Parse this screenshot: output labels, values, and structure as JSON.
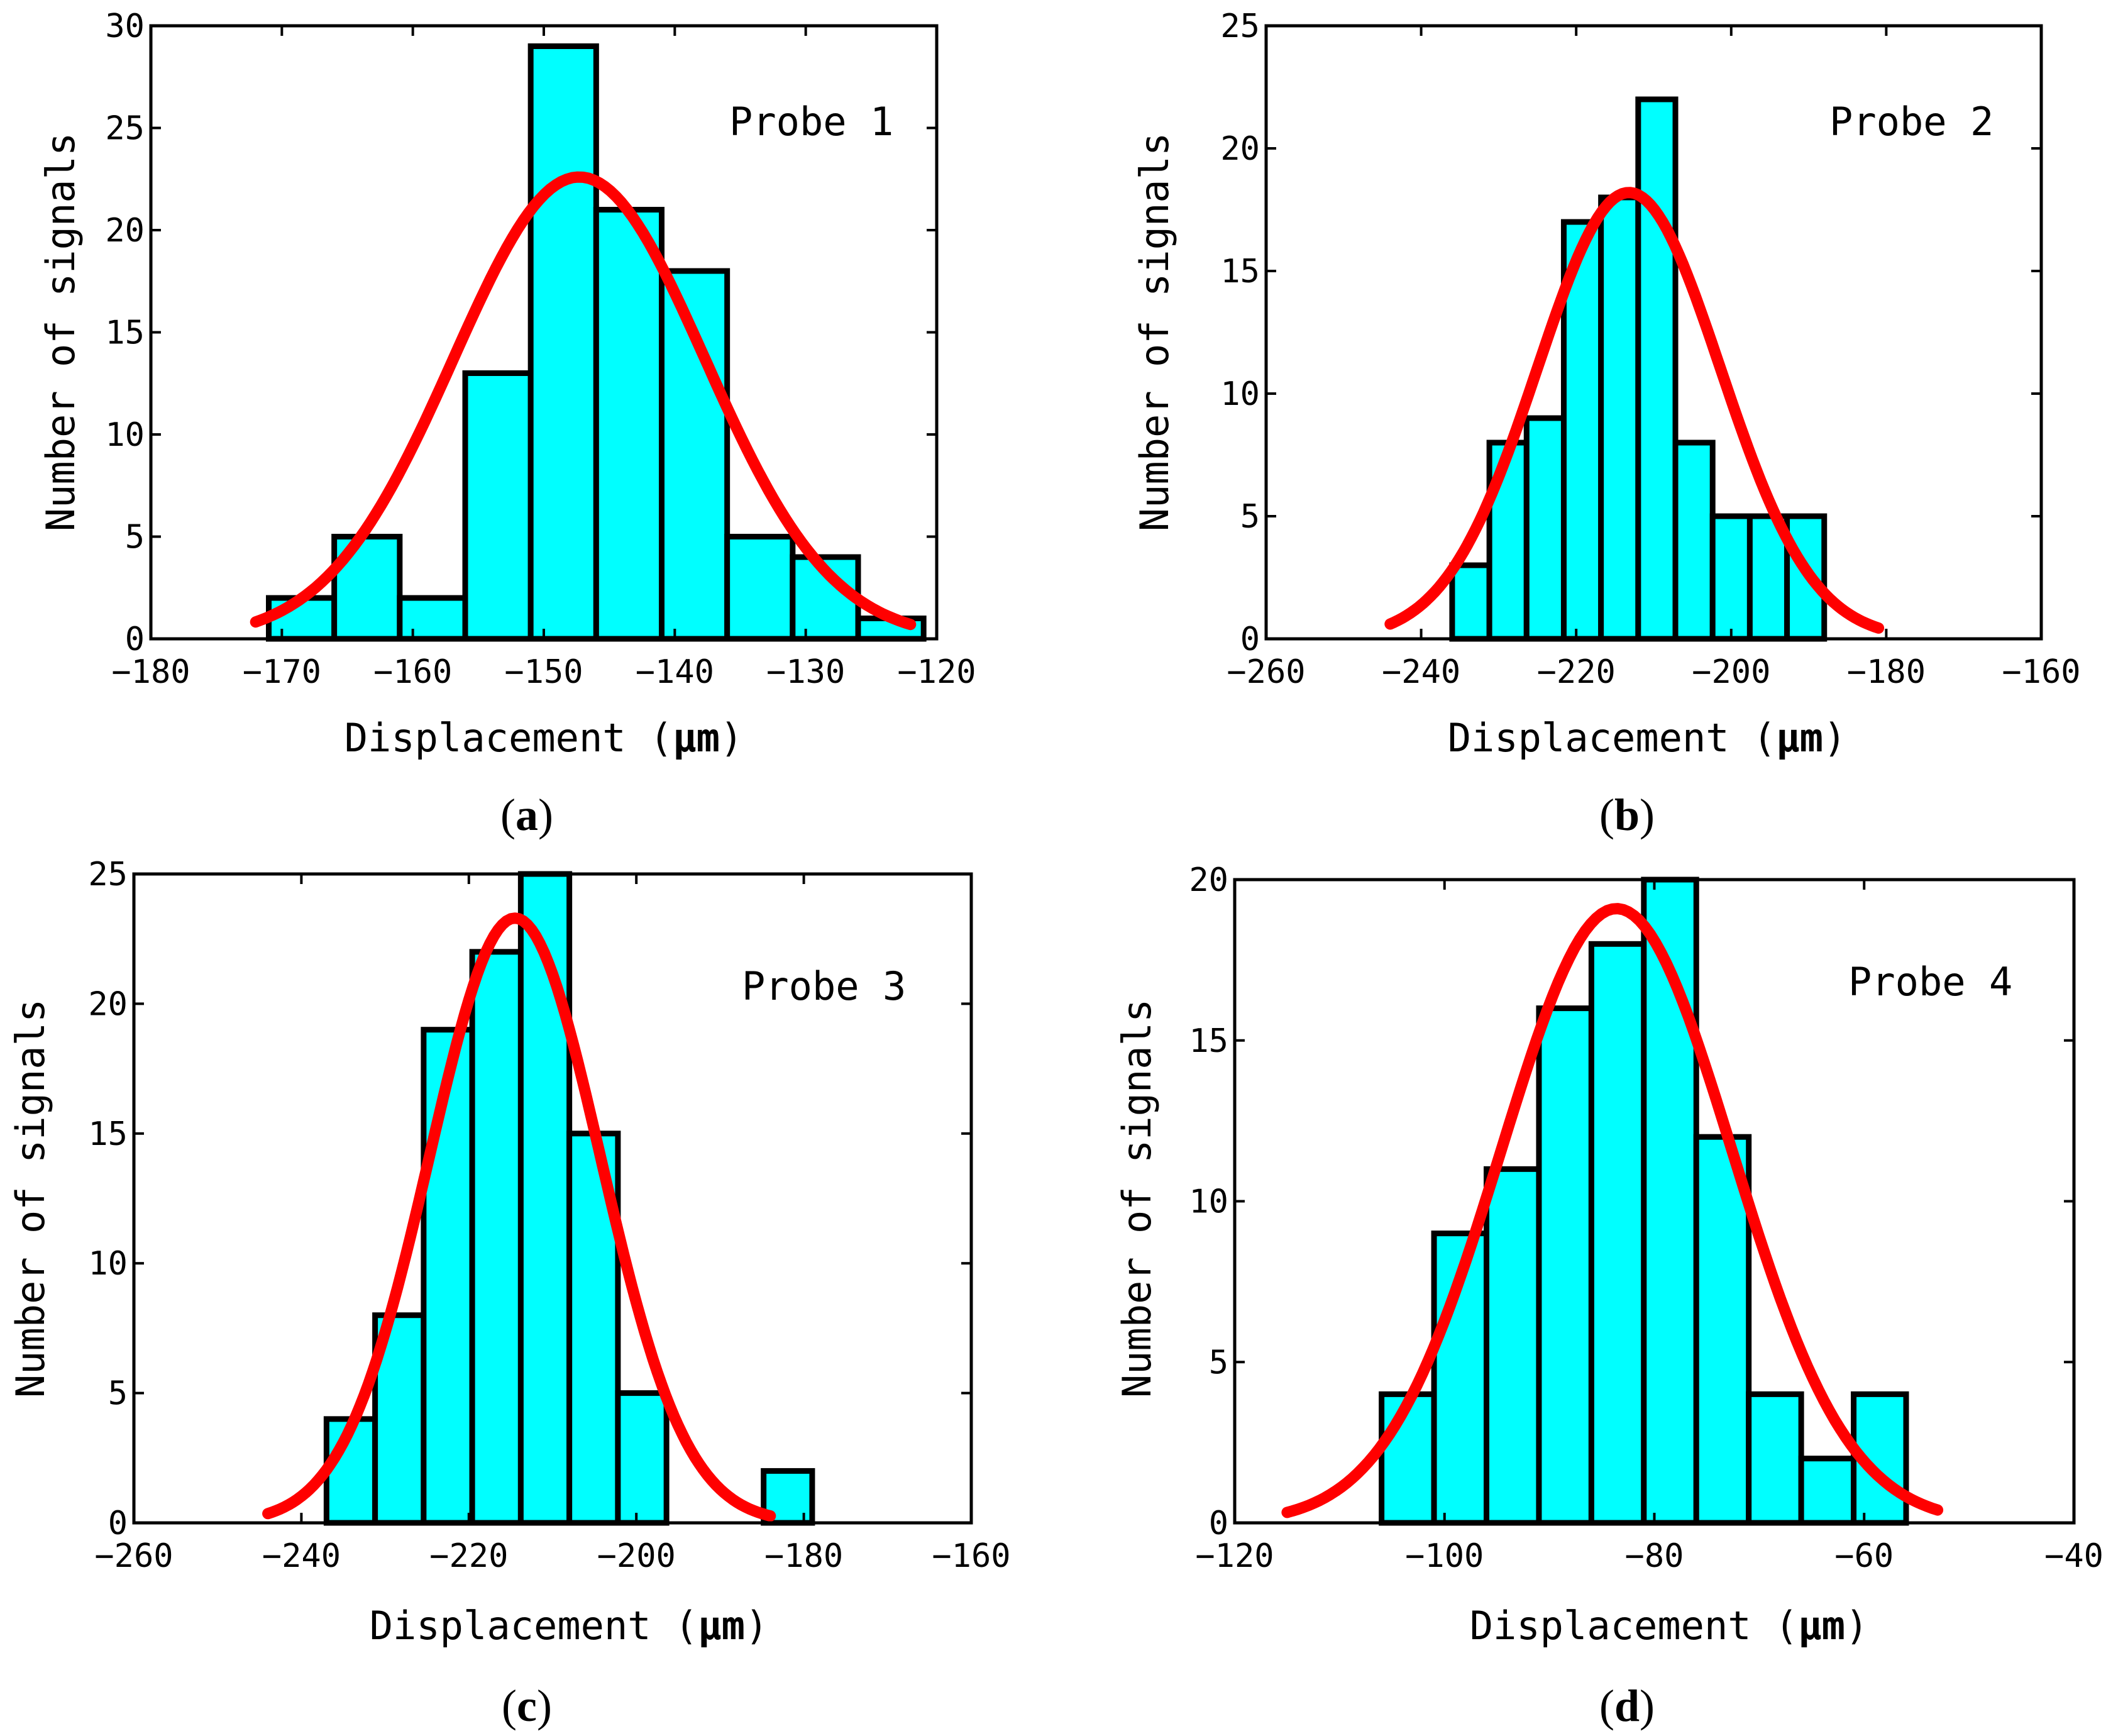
{
  "figure": {
    "panels": [
      {
        "label_open": "(",
        "label_letter": "a",
        "label_close": ")"
      },
      {
        "label_open": "(",
        "label_letter": "b",
        "label_close": ")"
      },
      {
        "label_open": "(",
        "label_letter": "c",
        "label_close": ")"
      },
      {
        "label_open": "(",
        "label_letter": "d",
        "label_close": ")"
      }
    ]
  },
  "colors": {
    "bar_fill": "#00FFFF",
    "bar_edge": "#000000",
    "fit_line": "#FF0000"
  },
  "chart_data": [
    {
      "type": "bar",
      "annotation": "Probe 1",
      "xlabel_text": "Displacement",
      "xlabel_unit": "μm",
      "ylabel": "Number of signals",
      "xlim": [
        -180,
        -120
      ],
      "ylim": [
        0,
        30
      ],
      "xticks": [
        -180,
        -170,
        -160,
        -150,
        -140,
        -130,
        -120
      ],
      "yticks": [
        0,
        5,
        10,
        15,
        20,
        25,
        30
      ],
      "bin_edges": [
        -171,
        -166,
        -161,
        -156,
        -151,
        -146,
        -141,
        -136,
        -131,
        -126,
        -121
      ],
      "counts": [
        2,
        5,
        2,
        13,
        29,
        21,
        18,
        5,
        4,
        1
      ],
      "fit": {
        "type": "normal",
        "mean": -147.3,
        "sd": 9.6,
        "peak": 22.6,
        "x_range": [
          -172,
          -122
        ]
      },
      "grid": false
    },
    {
      "type": "bar",
      "annotation": "Probe 2",
      "xlabel_text": "Displacement",
      "xlabel_unit": "μm",
      "ylabel": "Number of signals",
      "xlim": [
        -260,
        -160
      ],
      "ylim": [
        0,
        25
      ],
      "xticks": [
        -260,
        -240,
        -220,
        -200,
        -180,
        -160
      ],
      "yticks": [
        0,
        5,
        10,
        15,
        20,
        25
      ],
      "bin_edges": [
        -236,
        -231.2,
        -226.4,
        -221.6,
        -216.8,
        -212,
        -207.2,
        -202.4,
        -197.6,
        -192.8,
        -188
      ],
      "counts": [
        3,
        8,
        9,
        17,
        18,
        22,
        8,
        5,
        5,
        5
      ],
      "fit": {
        "type": "normal",
        "mean": -213.2,
        "sd": 11.8,
        "peak": 18.2,
        "x_range": [
          -244,
          -181
        ]
      },
      "grid": false
    },
    {
      "type": "bar",
      "annotation": "Probe 3",
      "xlabel_text": "Displacement",
      "xlabel_unit": "μm",
      "ylabel": "Number of signals",
      "xlim": [
        -260,
        -160
      ],
      "ylim": [
        0,
        25
      ],
      "xticks": [
        -260,
        -240,
        -220,
        -200,
        -180,
        -160
      ],
      "yticks": [
        0,
        5,
        10,
        15,
        20,
        25
      ],
      "bin_edges": [
        -237,
        -231.2,
        -225.4,
        -219.6,
        -213.8,
        -208,
        -202.2,
        -196.4,
        -190.6,
        -184.8,
        -179
      ],
      "counts": [
        4,
        8,
        19,
        22,
        25,
        15,
        5,
        0,
        0,
        2
      ],
      "fit": {
        "type": "normal",
        "mean": -214.5,
        "sd": 10.2,
        "peak": 23.3,
        "x_range": [
          -244,
          -184
        ]
      },
      "grid": false
    },
    {
      "type": "bar",
      "annotation": "Probe 4",
      "xlabel_text": "Displacement",
      "xlabel_unit": "μm",
      "ylabel": "Number of signals",
      "xlim": [
        -120,
        -40
      ],
      "ylim": [
        0,
        20
      ],
      "xticks": [
        -120,
        -100,
        -80,
        -60,
        -40
      ],
      "yticks": [
        0,
        5,
        10,
        15,
        20
      ],
      "bin_edges": [
        -106,
        -101,
        -96,
        -91,
        -86,
        -81,
        -76,
        -71,
        -66,
        -61,
        -56
      ],
      "counts": [
        4,
        9,
        11,
        16,
        18,
        20,
        12,
        4,
        2,
        4
      ],
      "fit": {
        "type": "normal",
        "mean": -83.6,
        "sd": 11.0,
        "peak": 19.1,
        "x_range": [
          -115,
          -53
        ]
      },
      "grid": false
    }
  ]
}
